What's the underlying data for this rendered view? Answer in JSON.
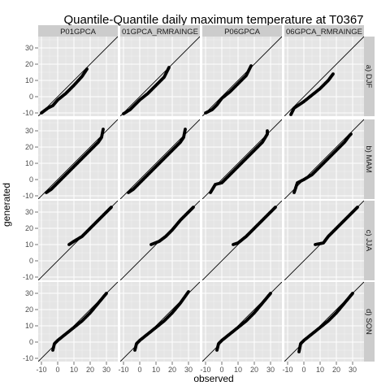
{
  "chart_data": {
    "type": "scatter",
    "title": "Quantile-Quantile daily maximum temperature at T0367",
    "xlabel": "observed",
    "ylabel": "generated",
    "xlim": [
      -12,
      37
    ],
    "ylim": [
      -12,
      37
    ],
    "x_ticks": [
      -10,
      0,
      10,
      20,
      30
    ],
    "y_ticks": [
      -10,
      0,
      10,
      20,
      30
    ],
    "x_tick_labels": [
      "-10",
      "0",
      "10",
      "20",
      "30"
    ],
    "y_tick_labels": [
      "-10",
      "0",
      "10",
      "20",
      "30"
    ],
    "columns": [
      "P01GPCA",
      "01GPCA_RMRAINGE",
      "P06GPCA",
      "06GPCA_RMRAINGE"
    ],
    "rows": [
      "a) DJF",
      "b) MAM",
      "c) JJA",
      "d) SON"
    ],
    "reference_line": "y = x",
    "grid": true,
    "colors": {
      "panel_bg": "#e5e5e5",
      "grid_major": "#ffffff",
      "grid_minor": "#f2f2f2",
      "strip_bg": "#cccccc",
      "points": "#000000"
    },
    "panels": [
      {
        "row": 0,
        "col": 0,
        "points": [
          [
            -10,
            -10
          ],
          [
            -6,
            -7
          ],
          [
            -3,
            -5.5
          ],
          [
            0,
            -2
          ],
          [
            5,
            2
          ],
          [
            10,
            7
          ],
          [
            15,
            12.5
          ],
          [
            18,
            17
          ]
        ]
      },
      {
        "row": 0,
        "col": 1,
        "points": [
          [
            -10,
            -10.5
          ],
          [
            -6,
            -8
          ],
          [
            -3,
            -5
          ],
          [
            0,
            -2
          ],
          [
            5,
            2
          ],
          [
            10,
            7
          ],
          [
            15,
            12
          ],
          [
            18,
            18
          ]
        ]
      },
      {
        "row": 0,
        "col": 2,
        "points": [
          [
            -10,
            -10
          ],
          [
            -6,
            -8
          ],
          [
            -3,
            -5
          ],
          [
            0,
            -1
          ],
          [
            5,
            3
          ],
          [
            10,
            8
          ],
          [
            15,
            13
          ],
          [
            18,
            19
          ]
        ]
      },
      {
        "row": 0,
        "col": 3,
        "points": [
          [
            -8,
            -11
          ],
          [
            -6,
            -7
          ],
          [
            -3,
            -5
          ],
          [
            0,
            -3
          ],
          [
            5,
            1
          ],
          [
            10,
            5
          ],
          [
            15,
            10
          ],
          [
            18,
            14
          ]
        ]
      },
      {
        "row": 1,
        "col": 0,
        "points": [
          [
            -7,
            -8
          ],
          [
            -4,
            -6
          ],
          [
            0,
            -2
          ],
          [
            5,
            3
          ],
          [
            10,
            8
          ],
          [
            15,
            13
          ],
          [
            20,
            18
          ],
          [
            25,
            23
          ],
          [
            27,
            26
          ],
          [
            28,
            31
          ]
        ]
      },
      {
        "row": 1,
        "col": 1,
        "points": [
          [
            -7,
            -8
          ],
          [
            -4,
            -6
          ],
          [
            0,
            -2
          ],
          [
            5,
            3
          ],
          [
            10,
            8
          ],
          [
            15,
            13
          ],
          [
            20,
            18
          ],
          [
            25,
            23
          ],
          [
            27,
            26
          ],
          [
            28,
            31
          ]
        ]
      },
      {
        "row": 1,
        "col": 2,
        "points": [
          [
            -7,
            -8
          ],
          [
            -4,
            -3
          ],
          [
            0,
            -2
          ],
          [
            5,
            3
          ],
          [
            10,
            8
          ],
          [
            15,
            13
          ],
          [
            20,
            18
          ],
          [
            25,
            23
          ],
          [
            28,
            28
          ],
          [
            28,
            30
          ]
        ]
      },
      {
        "row": 1,
        "col": 3,
        "points": [
          [
            -6,
            -8
          ],
          [
            -4,
            -2
          ],
          [
            0,
            0
          ],
          [
            5,
            3
          ],
          [
            10,
            8
          ],
          [
            15,
            13
          ],
          [
            20,
            18
          ],
          [
            25,
            23
          ],
          [
            28,
            27
          ],
          [
            29,
            28
          ]
        ]
      },
      {
        "row": 2,
        "col": 0,
        "points": [
          [
            7,
            10
          ],
          [
            10,
            12
          ],
          [
            15,
            15
          ],
          [
            20,
            20
          ],
          [
            25,
            25
          ],
          [
            30,
            30
          ],
          [
            33,
            33
          ]
        ]
      },
      {
        "row": 2,
        "col": 1,
        "points": [
          [
            7,
            10
          ],
          [
            12,
            12
          ],
          [
            16,
            15
          ],
          [
            20,
            19
          ],
          [
            25,
            25
          ],
          [
            30,
            30
          ],
          [
            33,
            33
          ]
        ]
      },
      {
        "row": 2,
        "col": 2,
        "points": [
          [
            7,
            10
          ],
          [
            10,
            11
          ],
          [
            15,
            15
          ],
          [
            20,
            20
          ],
          [
            25,
            25
          ],
          [
            30,
            30
          ],
          [
            33,
            33
          ]
        ]
      },
      {
        "row": 2,
        "col": 3,
        "points": [
          [
            7,
            10
          ],
          [
            12,
            11
          ],
          [
            15,
            15
          ],
          [
            20,
            20
          ],
          [
            25,
            25
          ],
          [
            30,
            30
          ],
          [
            33,
            33
          ]
        ]
      },
      {
        "row": 3,
        "col": 0,
        "points": [
          [
            -3,
            -5
          ],
          [
            -2,
            -1
          ],
          [
            0,
            1
          ],
          [
            5,
            5
          ],
          [
            10,
            9
          ],
          [
            15,
            13
          ],
          [
            20,
            18
          ],
          [
            25,
            24
          ],
          [
            30,
            30
          ]
        ]
      },
      {
        "row": 3,
        "col": 1,
        "points": [
          [
            -3,
            -5
          ],
          [
            -2,
            -1
          ],
          [
            0,
            1
          ],
          [
            5,
            5
          ],
          [
            10,
            9
          ],
          [
            15,
            13
          ],
          [
            20,
            18
          ],
          [
            25,
            24
          ],
          [
            30,
            31
          ]
        ]
      },
      {
        "row": 3,
        "col": 2,
        "points": [
          [
            -3,
            -5
          ],
          [
            -2,
            -1
          ],
          [
            0,
            1
          ],
          [
            5,
            5
          ],
          [
            10,
            9
          ],
          [
            15,
            13
          ],
          [
            20,
            18
          ],
          [
            25,
            24
          ],
          [
            30,
            30
          ]
        ]
      },
      {
        "row": 3,
        "col": 3,
        "points": [
          [
            -3,
            -6
          ],
          [
            -2,
            -1
          ],
          [
            0,
            1
          ],
          [
            5,
            5
          ],
          [
            10,
            9
          ],
          [
            15,
            13
          ],
          [
            20,
            18
          ],
          [
            25,
            24
          ],
          [
            30,
            30
          ]
        ]
      }
    ]
  }
}
